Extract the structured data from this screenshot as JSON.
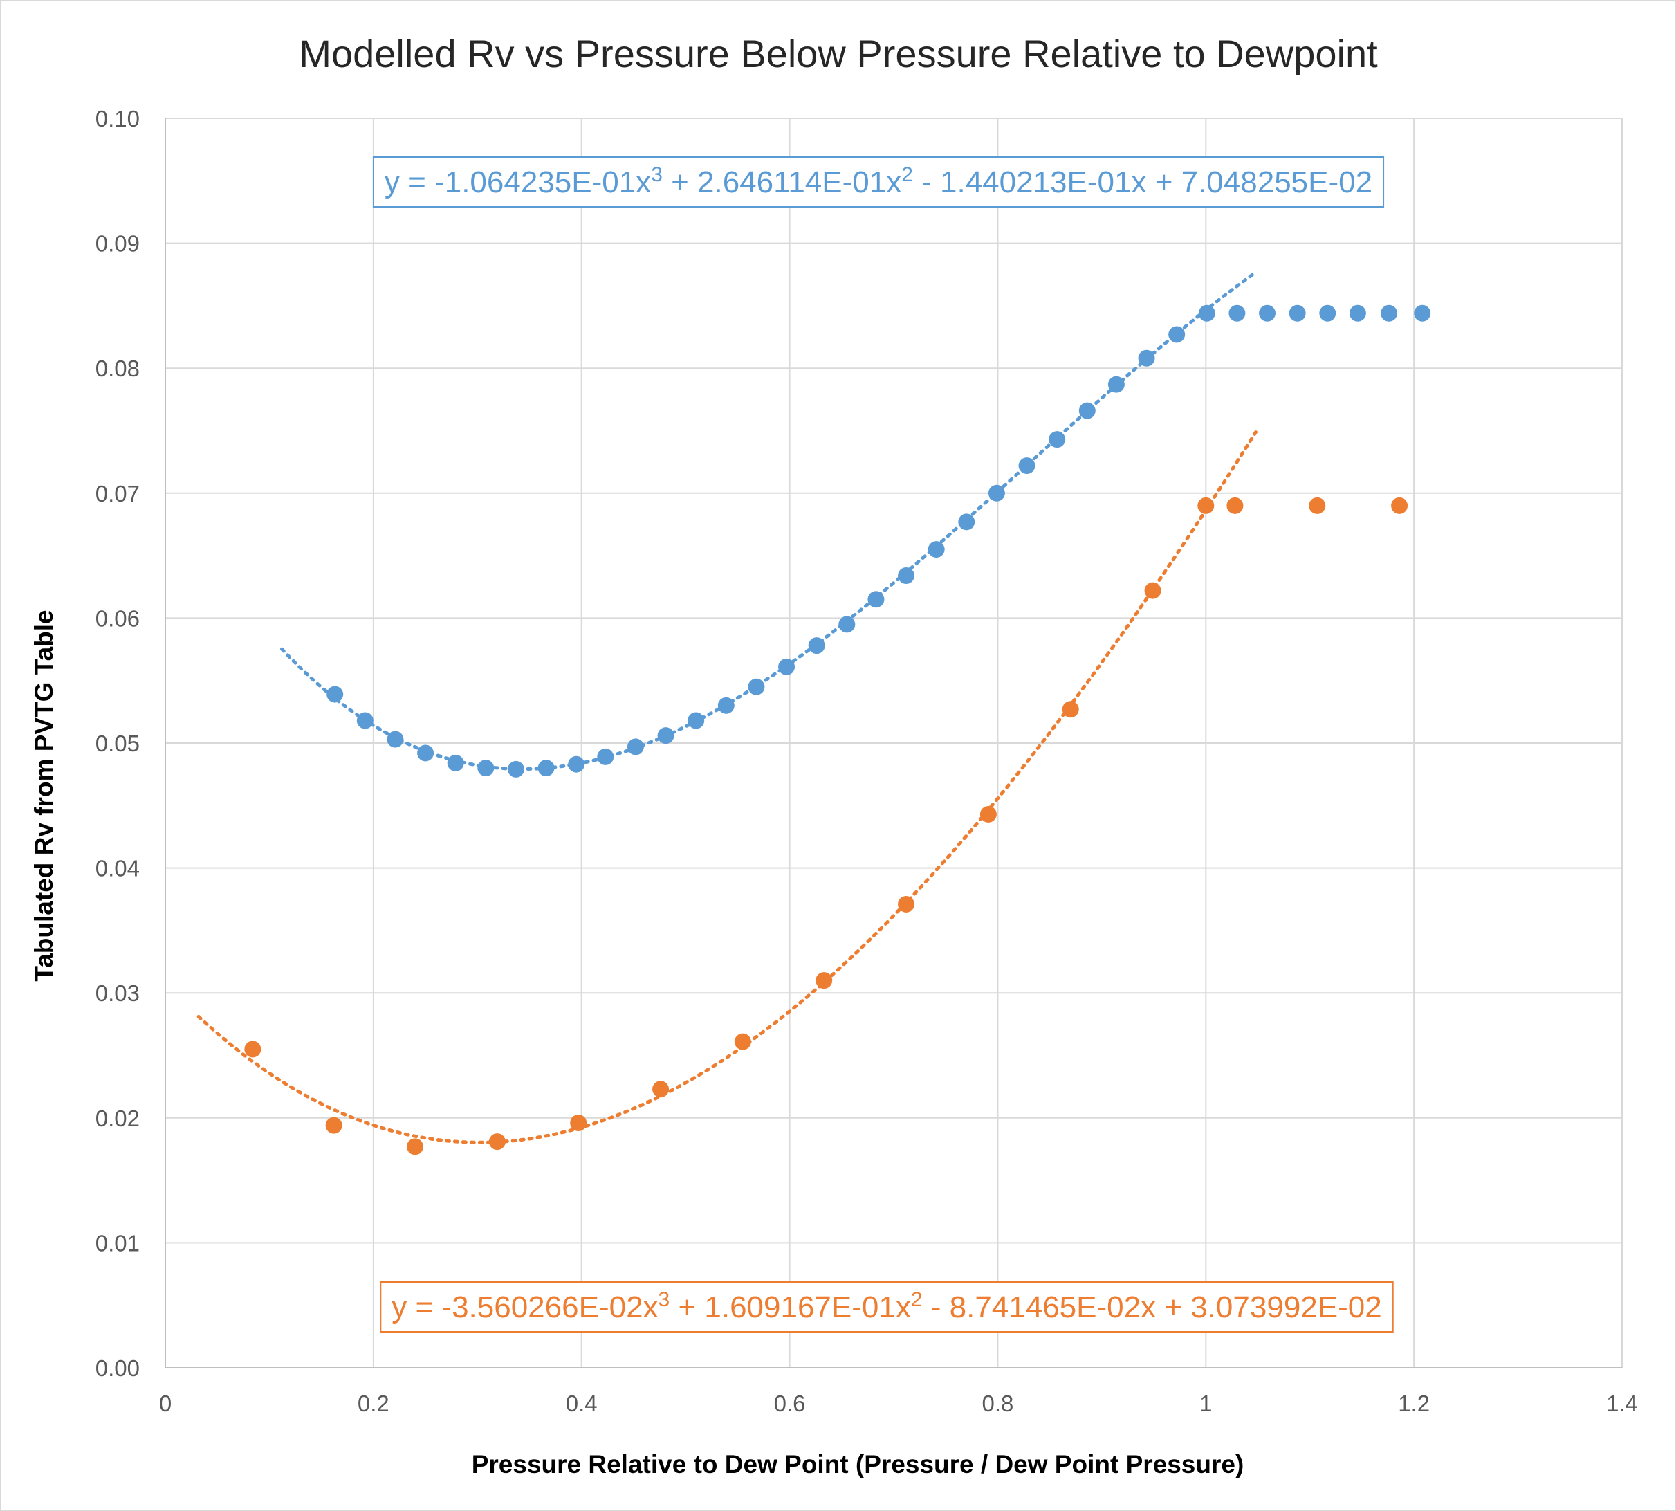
{
  "chart_data": {
    "type": "scatter",
    "title": "Modelled Rv vs Pressure Below Pressure Relative to Dewpoint",
    "xlabel": "Pressure Relative to Dew Point (Pressure / Dew Point Pressure)",
    "ylabel": "Tabulated Rv from PVTG Table",
    "xlim": [
      0,
      1.4
    ],
    "ylim": [
      0,
      0.1
    ],
    "x_ticks": [
      "0",
      "0.2",
      "0.4",
      "0.6",
      "0.8",
      "1",
      "1.2",
      "1.4"
    ],
    "y_ticks": [
      "0.00",
      "0.01",
      "0.02",
      "0.03",
      "0.04",
      "0.05",
      "0.06",
      "0.07",
      "0.08",
      "0.09",
      "0.10"
    ],
    "grid": true,
    "legend": "none",
    "series": [
      {
        "color": "#5b9bd5",
        "x": [
          0.163,
          0.192,
          0.221,
          0.25,
          0.279,
          0.308,
          0.337,
          0.366,
          0.395,
          0.423,
          0.452,
          0.481,
          0.51,
          0.539,
          0.568,
          0.597,
          0.626,
          0.655,
          0.683,
          0.712,
          0.741,
          0.77,
          0.799,
          0.828,
          0.857,
          0.886,
          0.914,
          0.943,
          0.972,
          1.001,
          1.03,
          1.059,
          1.088,
          1.117,
          1.146,
          1.176,
          1.208
        ],
        "y": [
          0.0539,
          0.0518,
          0.0503,
          0.0492,
          0.0484,
          0.048,
          0.0479,
          0.048,
          0.0483,
          0.0489,
          0.0497,
          0.0506,
          0.0518,
          0.053,
          0.0545,
          0.0561,
          0.0578,
          0.0595,
          0.0615,
          0.0634,
          0.0655,
          0.0677,
          0.07,
          0.0722,
          0.0743,
          0.0766,
          0.0787,
          0.0808,
          0.0827,
          0.0844,
          0.0844,
          0.0844,
          0.0844,
          0.0844,
          0.0844,
          0.0844,
          0.0844
        ],
        "trendline": {
          "type": "poly3",
          "coefficients": [
            -0.1064235,
            0.2646114,
            -0.1440213,
            0.07048255
          ],
          "x_range": [
            0.112,
            1.047
          ],
          "equation": "y = -1.064235E-01x³ + 2.646114E-01x² - 1.440213E-01x + 7.048255E-02"
        }
      },
      {
        "color": "#ed7d31",
        "x": [
          0.084,
          0.162,
          0.24,
          0.319,
          0.397,
          0.476,
          0.555,
          0.633,
          0.712,
          0.791,
          0.87,
          0.949,
          1.0,
          1.028,
          1.107,
          1.186
        ],
        "y": [
          0.0255,
          0.0194,
          0.0177,
          0.0181,
          0.0196,
          0.0223,
          0.0261,
          0.031,
          0.0371,
          0.0443,
          0.0527,
          0.0622,
          0.069,
          0.069,
          0.069,
          0.069
        ],
        "trendline": {
          "type": "poly3",
          "coefficients": [
            -0.03560266,
            0.1609167,
            -0.08741465,
            0.03073992
          ],
          "x_range": [
            0.032,
            1.048
          ],
          "equation": "y = -3.560266E-02x³ + 1.609167E-01x² - 8.741465E-02x + 3.073992E-02"
        }
      }
    ]
  }
}
